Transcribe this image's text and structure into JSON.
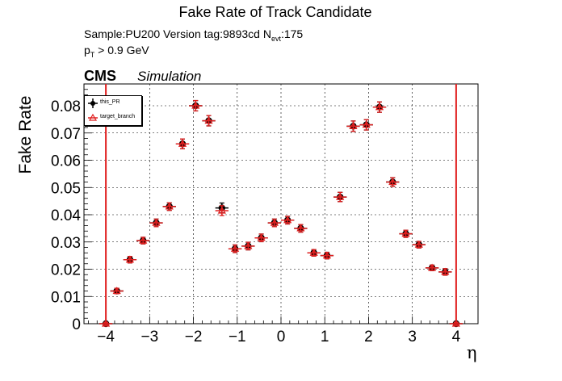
{
  "title": "Fake Rate of Track Candidate",
  "info": {
    "sample_prefix": "Sample:PU200   Version tag:9893cd  N",
    "nevt_sub": "evt",
    "nevt_value": ":175",
    "pt_p": "p",
    "pt_sub": "T",
    "pt_cut": " > 0.9 GeV"
  },
  "cms_label": "CMS",
  "simulation_label": "Simulation",
  "colors": {
    "this_PR": "#000000",
    "target_branch": "#e02020",
    "line": "#e02020"
  },
  "chart_data": {
    "type": "scatter",
    "title": "Fake Rate of Track Candidate",
    "xlabel": "η",
    "ylabel": "Fake Rate",
    "xlim": [
      -4.5,
      4.5
    ],
    "ylim": [
      0,
      0.088
    ],
    "grid": true,
    "legend_position": "top-left",
    "x_ticks": [
      -4,
      -3,
      -2,
      -1,
      0,
      1,
      2,
      3,
      4
    ],
    "x_tick_labels": [
      "−4",
      "−3",
      "−2",
      "−1",
      "0",
      "1",
      "2",
      "3",
      "4"
    ],
    "y_ticks": [
      0,
      0.01,
      0.02,
      0.03,
      0.04,
      0.05,
      0.06,
      0.07,
      0.08
    ],
    "y_tick_labels": [
      "0",
      "0.01",
      "0.02",
      "0.03",
      "0.04",
      "0.05",
      "0.06",
      "0.07",
      "0.08"
    ],
    "bin_half_width": 0.15,
    "x": [
      -4.0,
      -3.75,
      -3.45,
      -3.15,
      -2.85,
      -2.55,
      -2.25,
      -1.95,
      -1.65,
      -1.35,
      -1.05,
      -0.75,
      -0.45,
      -0.15,
      0.15,
      0.45,
      0.75,
      1.05,
      1.35,
      1.65,
      1.95,
      2.25,
      2.55,
      2.85,
      3.15,
      3.45,
      3.75,
      4.0
    ],
    "series": [
      {
        "name": "this_PR",
        "values": [
          0.0,
          0.012,
          0.0235,
          0.0305,
          0.037,
          0.043,
          0.066,
          0.08,
          0.0745,
          0.0425,
          0.0275,
          0.0285,
          0.0315,
          0.037,
          0.038,
          0.035,
          0.026,
          0.025,
          0.0465,
          0.0725,
          0.073,
          0.0795,
          0.052,
          0.033,
          0.029,
          0.0205,
          0.019,
          0.0
        ],
        "errors": [
          0.0005,
          0.001,
          0.0012,
          0.0012,
          0.0014,
          0.0014,
          0.0018,
          0.0019,
          0.0019,
          0.0018,
          0.0014,
          0.0014,
          0.0014,
          0.0014,
          0.0014,
          0.0014,
          0.0012,
          0.0012,
          0.0017,
          0.0019,
          0.0019,
          0.0019,
          0.0016,
          0.0013,
          0.0012,
          0.001,
          0.0012,
          0.0005
        ]
      },
      {
        "name": "target_branch",
        "values": [
          0.0,
          0.012,
          0.0235,
          0.0305,
          0.037,
          0.043,
          0.066,
          0.08,
          0.0745,
          0.0415,
          0.0275,
          0.0285,
          0.0315,
          0.037,
          0.038,
          0.035,
          0.026,
          0.025,
          0.0465,
          0.0725,
          0.073,
          0.0795,
          0.052,
          0.033,
          0.029,
          0.0205,
          0.019,
          0.0
        ],
        "errors": [
          0.0005,
          0.001,
          0.0012,
          0.0012,
          0.0014,
          0.0014,
          0.0018,
          0.0019,
          0.0019,
          0.0018,
          0.0014,
          0.0014,
          0.0014,
          0.0014,
          0.0014,
          0.0014,
          0.0012,
          0.0012,
          0.0017,
          0.0019,
          0.0019,
          0.0019,
          0.0016,
          0.0013,
          0.0012,
          0.001,
          0.0012,
          0.0005
        ]
      }
    ],
    "vertical_lines": [
      -4,
      4
    ]
  }
}
